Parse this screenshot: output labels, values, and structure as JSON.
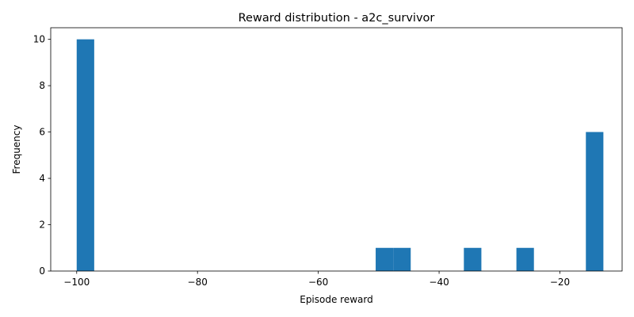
{
  "chart_data": {
    "type": "bar",
    "title": "Reward distribution - a2c_survivor",
    "xlabel": "Episode reward",
    "ylabel": "Frequency",
    "xlim": [
      -104.3,
      -9.7
    ],
    "ylim": [
      0,
      10.5
    ],
    "xticks": [
      -100,
      -80,
      -60,
      -40,
      -20
    ],
    "xtick_labels": [
      "−100",
      "−80",
      "−60",
      "−40",
      "−20"
    ],
    "yticks": [
      0,
      2,
      4,
      6,
      8,
      10
    ],
    "ytick_labels": [
      "0",
      "2",
      "4",
      "6",
      "8",
      "10"
    ],
    "bins": [
      {
        "x0": -100.0,
        "x1": -97.1,
        "count": 10
      },
      {
        "x0": -50.5,
        "x1": -47.6,
        "count": 1
      },
      {
        "x0": -47.6,
        "x1": -44.7,
        "count": 1
      },
      {
        "x0": -35.9,
        "x1": -33.0,
        "count": 1
      },
      {
        "x0": -27.2,
        "x1": -24.3,
        "count": 1
      },
      {
        "x0": -15.7,
        "x1": -12.8,
        "count": 6
      }
    ],
    "bar_color": "#1f77b4",
    "grid": false,
    "legend": "none"
  }
}
